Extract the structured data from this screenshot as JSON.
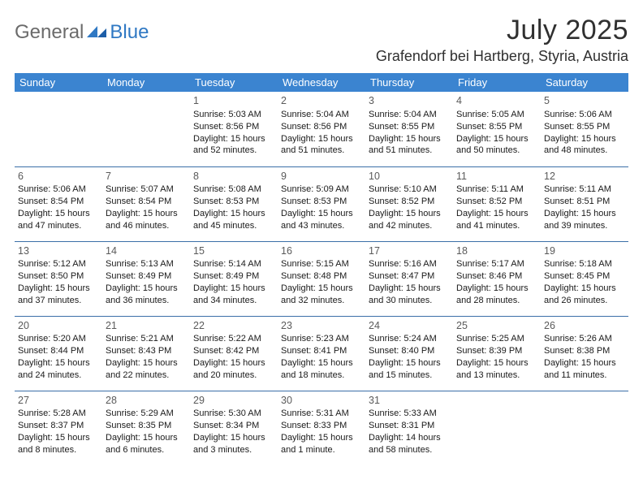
{
  "brand": {
    "general": "General",
    "blue": "Blue"
  },
  "header": {
    "month_title": "July 2025",
    "location": "Grafendorf bei Hartberg, Styria, Austria"
  },
  "colors": {
    "header_bg": "#3b84d0",
    "border": "#3b6fa8",
    "brand_blue": "#2f78c3",
    "brand_gray": "#6b6b6b"
  },
  "day_headers": [
    "Sunday",
    "Monday",
    "Tuesday",
    "Wednesday",
    "Thursday",
    "Friday",
    "Saturday"
  ],
  "weeks": [
    [
      null,
      null,
      {
        "n": "1",
        "sr": "5:03 AM",
        "ss": "8:56 PM",
        "dl": "15 hours and 52 minutes."
      },
      {
        "n": "2",
        "sr": "5:04 AM",
        "ss": "8:56 PM",
        "dl": "15 hours and 51 minutes."
      },
      {
        "n": "3",
        "sr": "5:04 AM",
        "ss": "8:55 PM",
        "dl": "15 hours and 51 minutes."
      },
      {
        "n": "4",
        "sr": "5:05 AM",
        "ss": "8:55 PM",
        "dl": "15 hours and 50 minutes."
      },
      {
        "n": "5",
        "sr": "5:06 AM",
        "ss": "8:55 PM",
        "dl": "15 hours and 48 minutes."
      }
    ],
    [
      {
        "n": "6",
        "sr": "5:06 AM",
        "ss": "8:54 PM",
        "dl": "15 hours and 47 minutes."
      },
      {
        "n": "7",
        "sr": "5:07 AM",
        "ss": "8:54 PM",
        "dl": "15 hours and 46 minutes."
      },
      {
        "n": "8",
        "sr": "5:08 AM",
        "ss": "8:53 PM",
        "dl": "15 hours and 45 minutes."
      },
      {
        "n": "9",
        "sr": "5:09 AM",
        "ss": "8:53 PM",
        "dl": "15 hours and 43 minutes."
      },
      {
        "n": "10",
        "sr": "5:10 AM",
        "ss": "8:52 PM",
        "dl": "15 hours and 42 minutes."
      },
      {
        "n": "11",
        "sr": "5:11 AM",
        "ss": "8:52 PM",
        "dl": "15 hours and 41 minutes."
      },
      {
        "n": "12",
        "sr": "5:11 AM",
        "ss": "8:51 PM",
        "dl": "15 hours and 39 minutes."
      }
    ],
    [
      {
        "n": "13",
        "sr": "5:12 AM",
        "ss": "8:50 PM",
        "dl": "15 hours and 37 minutes."
      },
      {
        "n": "14",
        "sr": "5:13 AM",
        "ss": "8:49 PM",
        "dl": "15 hours and 36 minutes."
      },
      {
        "n": "15",
        "sr": "5:14 AM",
        "ss": "8:49 PM",
        "dl": "15 hours and 34 minutes."
      },
      {
        "n": "16",
        "sr": "5:15 AM",
        "ss": "8:48 PM",
        "dl": "15 hours and 32 minutes."
      },
      {
        "n": "17",
        "sr": "5:16 AM",
        "ss": "8:47 PM",
        "dl": "15 hours and 30 minutes."
      },
      {
        "n": "18",
        "sr": "5:17 AM",
        "ss": "8:46 PM",
        "dl": "15 hours and 28 minutes."
      },
      {
        "n": "19",
        "sr": "5:18 AM",
        "ss": "8:45 PM",
        "dl": "15 hours and 26 minutes."
      }
    ],
    [
      {
        "n": "20",
        "sr": "5:20 AM",
        "ss": "8:44 PM",
        "dl": "15 hours and 24 minutes."
      },
      {
        "n": "21",
        "sr": "5:21 AM",
        "ss": "8:43 PM",
        "dl": "15 hours and 22 minutes."
      },
      {
        "n": "22",
        "sr": "5:22 AM",
        "ss": "8:42 PM",
        "dl": "15 hours and 20 minutes."
      },
      {
        "n": "23",
        "sr": "5:23 AM",
        "ss": "8:41 PM",
        "dl": "15 hours and 18 minutes."
      },
      {
        "n": "24",
        "sr": "5:24 AM",
        "ss": "8:40 PM",
        "dl": "15 hours and 15 minutes."
      },
      {
        "n": "25",
        "sr": "5:25 AM",
        "ss": "8:39 PM",
        "dl": "15 hours and 13 minutes."
      },
      {
        "n": "26",
        "sr": "5:26 AM",
        "ss": "8:38 PM",
        "dl": "15 hours and 11 minutes."
      }
    ],
    [
      {
        "n": "27",
        "sr": "5:28 AM",
        "ss": "8:37 PM",
        "dl": "15 hours and 8 minutes."
      },
      {
        "n": "28",
        "sr": "5:29 AM",
        "ss": "8:35 PM",
        "dl": "15 hours and 6 minutes."
      },
      {
        "n": "29",
        "sr": "5:30 AM",
        "ss": "8:34 PM",
        "dl": "15 hours and 3 minutes."
      },
      {
        "n": "30",
        "sr": "5:31 AM",
        "ss": "8:33 PM",
        "dl": "15 hours and 1 minute."
      },
      {
        "n": "31",
        "sr": "5:33 AM",
        "ss": "8:31 PM",
        "dl": "14 hours and 58 minutes."
      },
      null,
      null
    ]
  ],
  "labels": {
    "sunrise": "Sunrise: ",
    "sunset": "Sunset: ",
    "daylight": "Daylight: "
  }
}
